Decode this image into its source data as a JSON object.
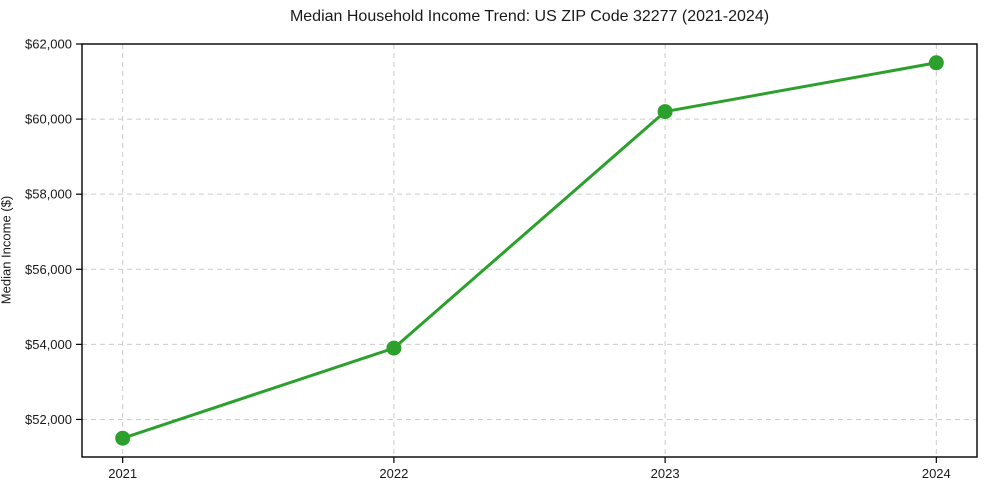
{
  "chart_data": {
    "type": "line",
    "title": "Median Household Income Trend: US ZIP Code 32277 (2021-2024)",
    "xlabel": "",
    "ylabel": "Median Income ($)",
    "x": [
      2021,
      2022,
      2023,
      2024
    ],
    "x_tick_labels": [
      "2021",
      "2022",
      "2023",
      "2024"
    ],
    "series": [
      {
        "name": "Median Household Income",
        "values": [
          51500,
          53900,
          60200,
          61500
        ]
      }
    ],
    "y_ticks": [
      52000,
      54000,
      56000,
      58000,
      60000,
      62000
    ],
    "y_tick_labels": [
      "$52,000",
      "$54,000",
      "$56,000",
      "$58,000",
      "$60,000",
      "$62,000"
    ],
    "ylim": [
      51000,
      62000
    ],
    "xlim": [
      2020.85,
      2024.15
    ],
    "grid": true,
    "grid_style": "dashed",
    "legend_position": "none",
    "colors": {
      "line": "#2ca02c",
      "marker": "#2ca02c",
      "grid": "#cccccc",
      "spine": "#000000",
      "background": "#ffffff",
      "text": "#1a1a1a"
    }
  }
}
